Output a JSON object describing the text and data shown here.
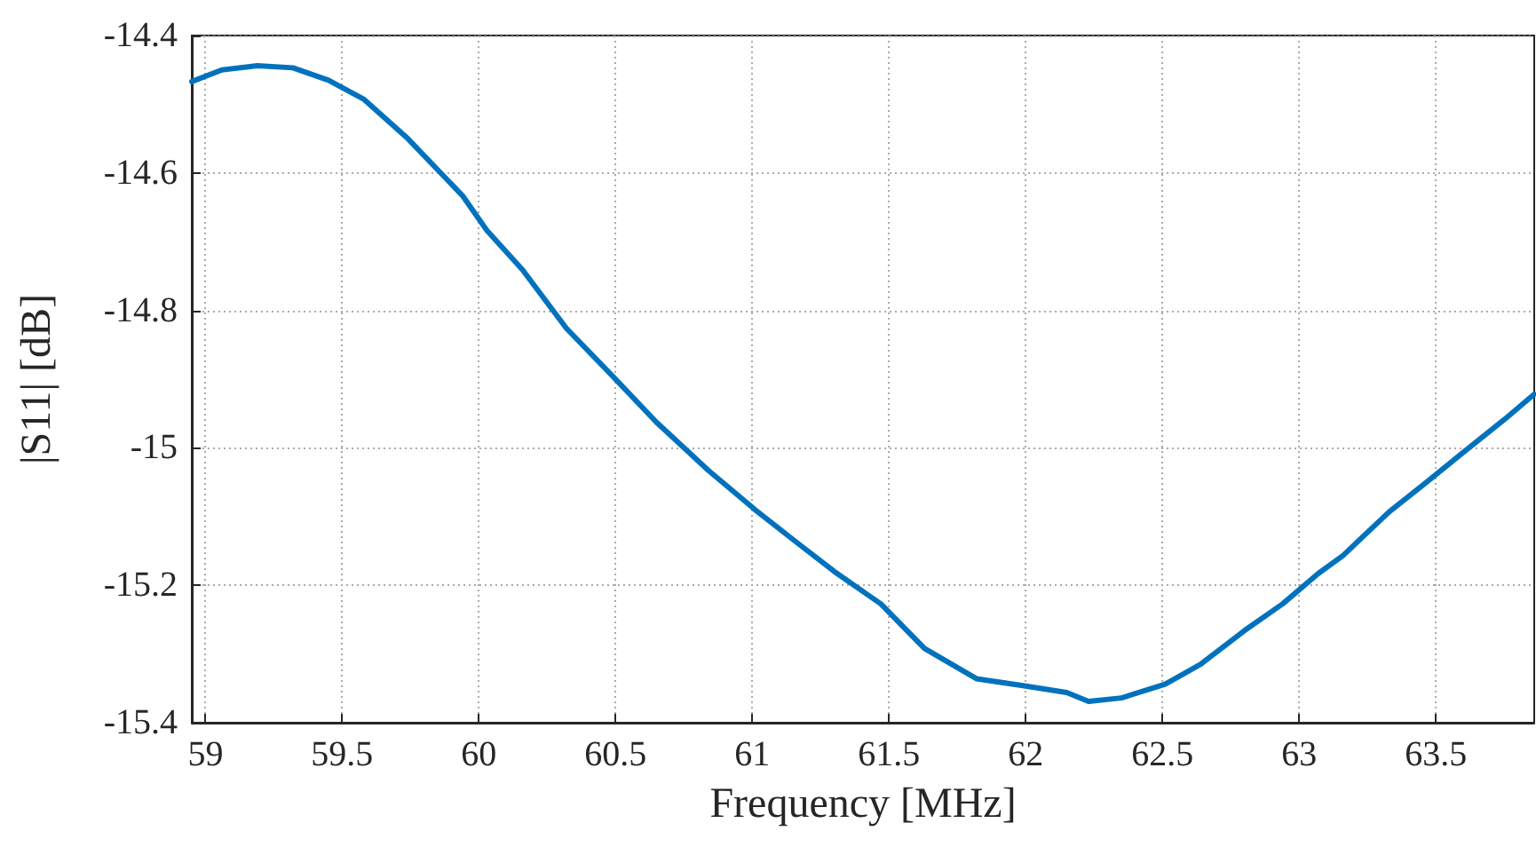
{
  "chart_data": {
    "type": "line",
    "xlabel": "Frequency [MHz]",
    "ylabel": "|S11| [dB]",
    "xlim": [
      58.95,
      63.86
    ],
    "ylim": [
      -15.4,
      -14.4
    ],
    "xticks": [
      59,
      59.5,
      60,
      60.5,
      61,
      61.5,
      62,
      62.5,
      63,
      63.5
    ],
    "yticks": [
      -15.4,
      -15.2,
      -15,
      -14.8,
      -14.6,
      -14.4
    ],
    "grid": true,
    "line_style": "solid",
    "marker": "none",
    "series": [
      {
        "color": "#0072bd",
        "x": [
          58.95,
          59.06,
          59.19,
          59.32,
          59.45,
          59.58,
          59.74,
          59.94,
          60.03,
          60.16,
          60.32,
          60.49,
          60.65,
          60.84,
          61.01,
          61.17,
          61.3,
          61.47,
          61.63,
          61.82,
          61.99,
          62.15,
          62.23,
          62.35,
          62.51,
          62.64,
          62.8,
          62.94,
          63.07,
          63.16,
          63.33,
          63.46,
          63.59,
          63.75,
          63.86
        ],
        "values": [
          -14.467,
          -14.45,
          -14.444,
          -14.447,
          -14.465,
          -14.493,
          -14.55,
          -14.633,
          -14.684,
          -14.741,
          -14.826,
          -14.896,
          -14.963,
          -15.033,
          -15.09,
          -15.14,
          -15.18,
          -15.227,
          -15.292,
          -15.336,
          -15.346,
          -15.356,
          -15.369,
          -15.364,
          -15.344,
          -15.315,
          -15.266,
          -15.227,
          -15.183,
          -15.157,
          -15.093,
          -15.052,
          -15.01,
          -14.959,
          -14.922
        ]
      }
    ]
  }
}
